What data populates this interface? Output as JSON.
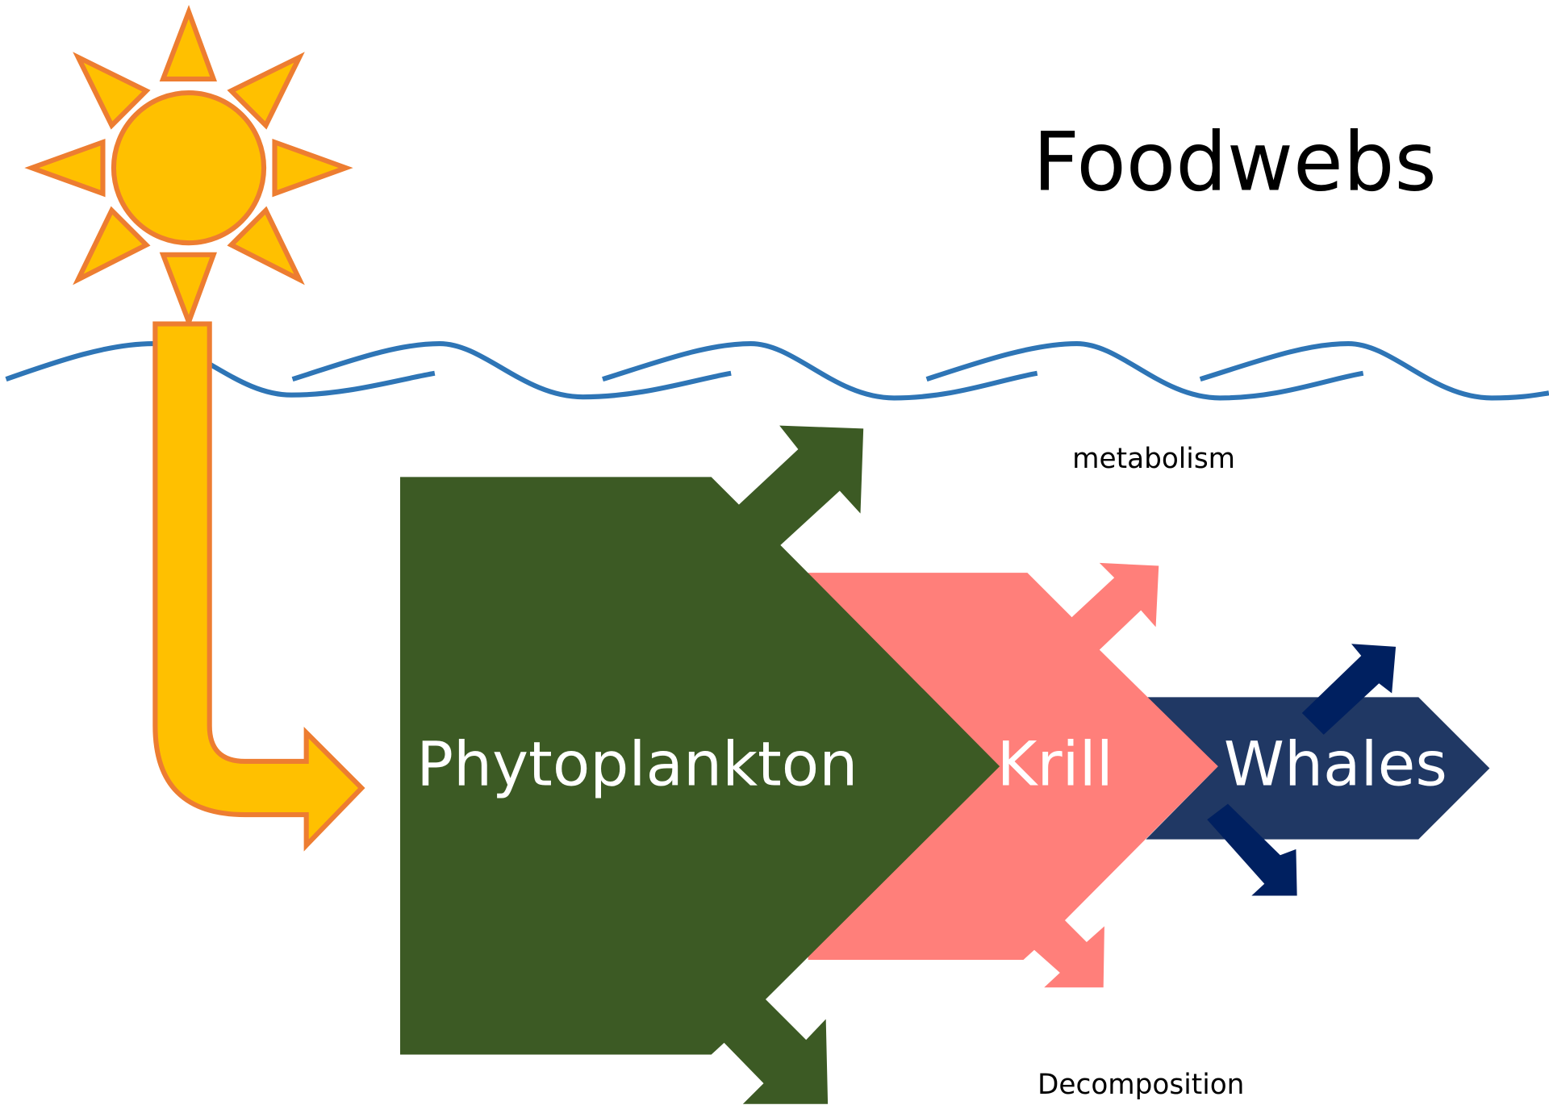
{
  "title": "Foodwebs",
  "labels": {
    "metabolism": "metabolism",
    "decomposition": "Decomposition"
  },
  "nodes": [
    {
      "label": "Phytoplankton"
    },
    {
      "label": "Krill"
    },
    {
      "label": "Whales"
    }
  ]
}
